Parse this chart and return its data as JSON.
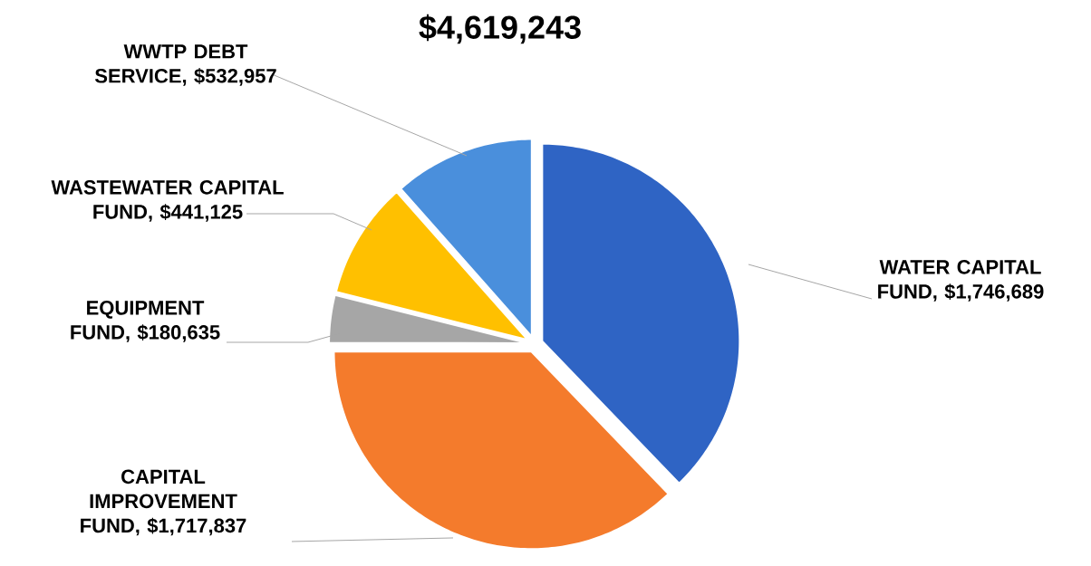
{
  "chart_data": {
    "type": "pie",
    "title": "$4,619,243",
    "categories": [
      "WATER CAPITAL FUND, $1,746,689",
      "CAPITAL IMPROVEMENT FUND, $1,717,837",
      "EQUIPMENT FUND, $180,635",
      "WASTEWATER CAPITAL FUND, $441,125",
      "WWTP DEBT SERVICE, $532,957"
    ],
    "values": [
      1746689,
      1717837,
      180635,
      441125,
      532957
    ],
    "colors": [
      "#2f64c4",
      "#f47b2c",
      "#a6a6a6",
      "#ffc000",
      "#4a8fdc"
    ]
  }
}
